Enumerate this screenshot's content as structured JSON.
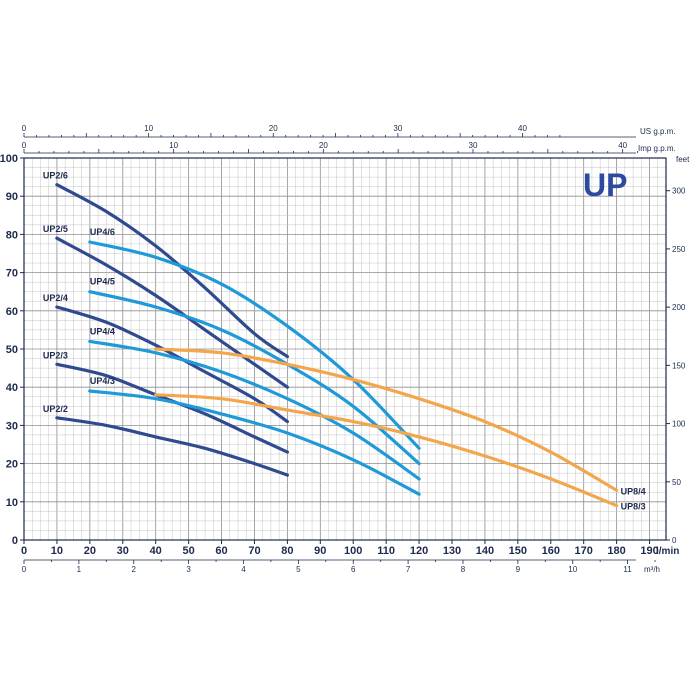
{
  "chart_data": {
    "type": "line",
    "title": "",
    "brand": "UP",
    "x": {
      "range": [
        0,
        195
      ],
      "ticks": [
        0,
        10,
        20,
        30,
        40,
        50,
        60,
        70,
        80,
        90,
        100,
        110,
        120,
        130,
        140,
        150,
        160,
        170,
        180,
        190
      ],
      "unit": "l/min"
    },
    "x_top_us": {
      "ticks": [
        0,
        10,
        20,
        30,
        40
      ],
      "unit": "US g.p.m."
    },
    "x_top_imp": {
      "ticks": [
        0,
        10,
        20,
        30,
        40
      ],
      "unit": "Imp g.p.m."
    },
    "x_bottom_m3h": {
      "ticks": [
        0,
        1,
        2,
        3,
        4,
        5,
        6,
        7,
        8,
        9,
        10,
        11
      ],
      "unit": "m³/h"
    },
    "y": {
      "range": [
        0,
        100
      ],
      "ticks": [
        0,
        10,
        20,
        30,
        40,
        50,
        60,
        70,
        80,
        90,
        100
      ]
    },
    "y_right_feet": {
      "ticks": [
        0,
        50,
        100,
        150,
        200,
        250,
        300
      ],
      "unit": "feet"
    },
    "grid": true,
    "colors": {
      "UP2": "#2f4a8f",
      "UP4": "#1f9ad8",
      "UP8": "#f3a64b",
      "text": "#1c2a4e"
    },
    "series": [
      {
        "name": "UP2/6",
        "group": "UP2",
        "x": [
          10,
          25,
          40,
          55,
          70,
          80
        ],
        "y": [
          93,
          86,
          77,
          66,
          54,
          48
        ]
      },
      {
        "name": "UP2/5",
        "group": "UP2",
        "x": [
          10,
          25,
          40,
          55,
          70,
          80
        ],
        "y": [
          79,
          72,
          64,
          55,
          46,
          40
        ]
      },
      {
        "name": "UP2/4",
        "group": "UP2",
        "x": [
          10,
          25,
          40,
          55,
          70,
          80
        ],
        "y": [
          61,
          57,
          51,
          44,
          37,
          31
        ]
      },
      {
        "name": "UP2/3",
        "group": "UP2",
        "x": [
          10,
          25,
          40,
          55,
          70,
          80
        ],
        "y": [
          46,
          43,
          38,
          33,
          27,
          23
        ]
      },
      {
        "name": "UP2/2",
        "group": "UP2",
        "x": [
          10,
          25,
          40,
          55,
          70,
          80
        ],
        "y": [
          32,
          30,
          27,
          24,
          20,
          17
        ]
      },
      {
        "name": "UP4/6",
        "group": "UP4",
        "x": [
          20,
          40,
          60,
          80,
          100,
          120
        ],
        "y": [
          78,
          74,
          67,
          56,
          42,
          24
        ]
      },
      {
        "name": "UP4/5",
        "group": "UP4",
        "x": [
          20,
          40,
          60,
          80,
          100,
          120
        ],
        "y": [
          65,
          61,
          55,
          46,
          35,
          20
        ]
      },
      {
        "name": "UP4/4",
        "group": "UP4",
        "x": [
          20,
          40,
          60,
          80,
          100,
          120
        ],
        "y": [
          52,
          49,
          44,
          37,
          28,
          16
        ]
      },
      {
        "name": "UP4/3",
        "group": "UP4",
        "x": [
          20,
          40,
          60,
          80,
          100,
          120
        ],
        "y": [
          39,
          37,
          33,
          28,
          21,
          12
        ]
      },
      {
        "name": "UP8/4",
        "group": "UP8",
        "x": [
          40,
          60,
          80,
          100,
          120,
          140,
          160,
          180
        ],
        "y": [
          50,
          49,
          46,
          42,
          37,
          31,
          23,
          13
        ]
      },
      {
        "name": "UP8/3",
        "group": "UP8",
        "x": [
          40,
          60,
          80,
          100,
          120,
          140,
          160,
          180
        ],
        "y": [
          38,
          37,
          34,
          31,
          27,
          22,
          16,
          9
        ]
      }
    ]
  }
}
